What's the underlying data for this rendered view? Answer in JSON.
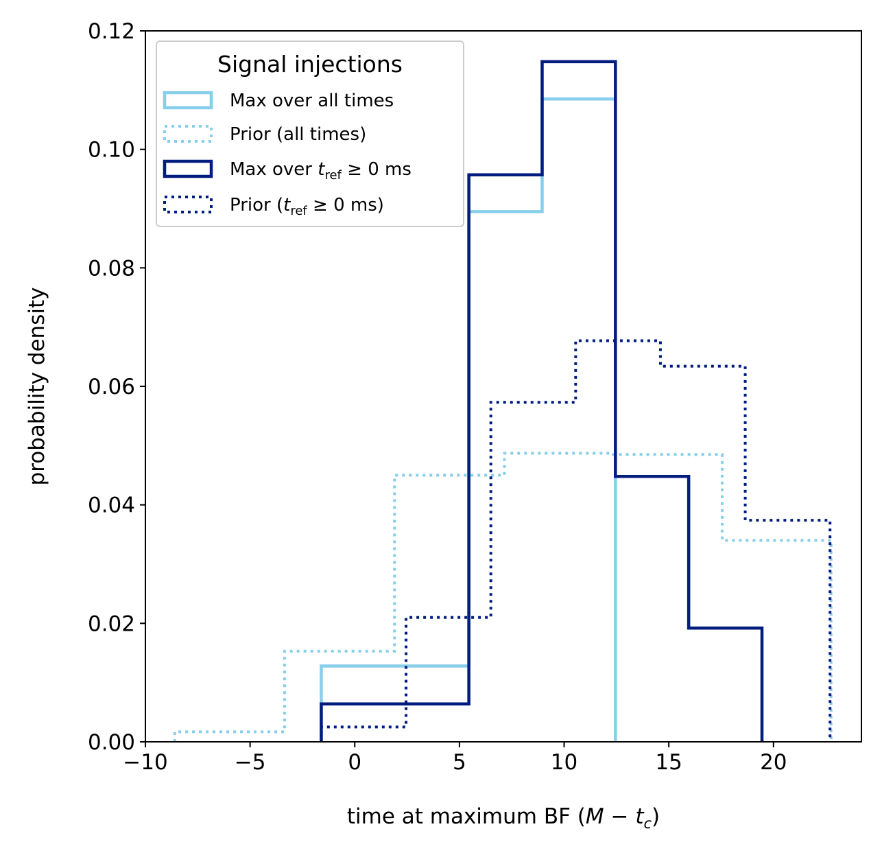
{
  "chart_data": {
    "type": "histogram",
    "title": "",
    "xlabel": "time at maximum BF (M − t_c)",
    "xlabel_parts": {
      "main": "time at maximum BF (",
      "M": "M",
      "minus": " − ",
      "t": "t",
      "sub": "c",
      "close": ")"
    },
    "ylabel": "probability density",
    "xlim": [
      -10,
      24.2
    ],
    "ylim": [
      0,
      0.12
    ],
    "xticks": [
      -10,
      -5,
      0,
      5,
      10,
      15,
      20
    ],
    "xtick_labels": [
      "−10",
      "−5",
      "0",
      "5",
      "10",
      "15",
      "20"
    ],
    "yticks": [
      0,
      0.02,
      0.04,
      0.06,
      0.08,
      0.1,
      0.12
    ],
    "ytick_labels": [
      "0.00",
      "0.02",
      "0.04",
      "0.06",
      "0.08",
      "0.10",
      "0.12"
    ],
    "legend": {
      "title": "Signal injections",
      "location": "upper left",
      "entries": [
        {
          "label": "Max over all times",
          "plain": true
        },
        {
          "label": "Prior (all times)",
          "plain": true
        },
        {
          "label": "Max over t_ref ≥ 0 ms",
          "pre": "Max over ",
          "t": "t",
          "sub": "ref",
          "post": " ≥ 0 ms"
        },
        {
          "label": "Prior (t_ref ≥ 0 ms)",
          "pre": "Prior (",
          "t": "t",
          "sub": "ref",
          "post": " ≥ 0 ms)"
        }
      ]
    },
    "series": [
      {
        "name": "Max over all times",
        "color": "#87CEEB",
        "style": "solid",
        "width": 4.5,
        "edges": [
          -1.6,
          5.45,
          8.95,
          12.45
        ],
        "values": [
          0.0128,
          0.0895,
          0.1085
        ]
      },
      {
        "name": "Prior (all times)",
        "color": "#87CEEB",
        "style": "dotted",
        "width": 4,
        "edges": [
          -8.6,
          -3.35,
          1.9,
          7.15,
          12.35,
          17.55,
          22.75
        ],
        "values": [
          0.0017,
          0.0153,
          0.045,
          0.0487,
          0.0485,
          0.034
        ]
      },
      {
        "name": "Max over t_ref ≥ 0 ms",
        "color": "#001C7F",
        "style": "solid",
        "width": 4.5,
        "edges": [
          -1.6,
          5.45,
          8.95,
          12.45,
          15.95,
          19.45
        ],
        "values": [
          0.0064,
          0.0957,
          0.1148,
          0.0448,
          0.0192
        ]
      },
      {
        "name": "Prior (t_ref ≥ 0 ms)",
        "color": "#001C7F",
        "style": "dotted",
        "width": 4,
        "edges": [
          -1.6,
          2.45,
          6.5,
          10.55,
          14.6,
          18.65,
          22.7
        ],
        "values": [
          0.0025,
          0.021,
          0.0573,
          0.0677,
          0.0634,
          0.0374
        ]
      }
    ]
  }
}
